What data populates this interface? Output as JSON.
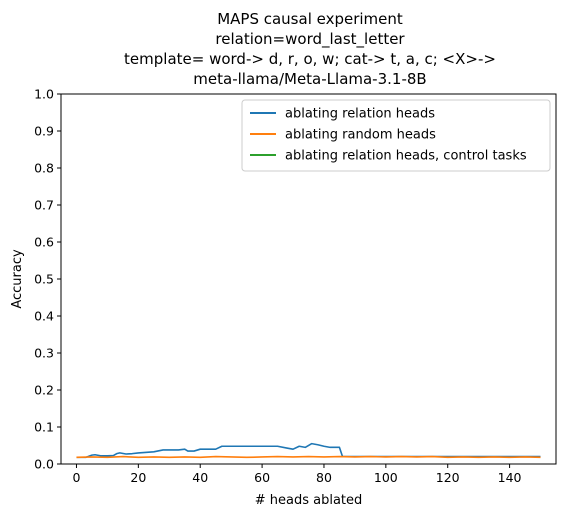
{
  "chart_data": {
    "type": "line",
    "title": [
      "MAPS causal experiment",
      "relation=word_last_letter",
      "template= word-> d, r, o, w; cat-> t, a, c; <X>->",
      "meta-llama/Meta-Llama-3.1-8B"
    ],
    "xlabel": "# heads ablated",
    "ylabel": "Accuracy",
    "xlim": [
      -5,
      155
    ],
    "ylim": [
      0,
      1
    ],
    "xticks": [
      0,
      20,
      40,
      60,
      80,
      100,
      120,
      140
    ],
    "yticks": [
      0.0,
      0.1,
      0.2,
      0.3,
      0.4,
      0.5,
      0.6,
      0.7,
      0.8,
      0.9,
      1.0
    ],
    "ytick_labels": [
      "0.0",
      "0.1",
      "0.2",
      "0.3",
      "0.4",
      "0.5",
      "0.6",
      "0.7",
      "0.8",
      "0.9",
      "1.0"
    ],
    "grid": false,
    "legend_position": "top-right",
    "series": [
      {
        "name": "ablating relation heads",
        "color": "#1f77b4",
        "x": [
          0,
          3,
          5,
          6,
          8,
          10,
          12,
          13,
          14,
          16,
          18,
          20,
          25,
          28,
          30,
          33,
          35,
          36,
          38,
          40,
          42,
          45,
          47,
          50,
          55,
          60,
          65,
          68,
          70,
          72,
          74,
          76,
          78,
          80,
          82,
          85,
          86,
          88,
          90,
          100,
          110,
          120,
          130,
          140,
          150
        ],
        "y": [
          0.018,
          0.018,
          0.024,
          0.025,
          0.022,
          0.022,
          0.023,
          0.028,
          0.03,
          0.027,
          0.028,
          0.03,
          0.033,
          0.038,
          0.038,
          0.038,
          0.04,
          0.035,
          0.035,
          0.04,
          0.04,
          0.04,
          0.048,
          0.048,
          0.048,
          0.048,
          0.048,
          0.043,
          0.04,
          0.048,
          0.045,
          0.055,
          0.052,
          0.048,
          0.045,
          0.045,
          0.02,
          0.02,
          0.02,
          0.02,
          0.02,
          0.02,
          0.02,
          0.02,
          0.02
        ]
      },
      {
        "name": "ablating random heads",
        "color": "#ff7f0e",
        "x": [
          0,
          5,
          10,
          15,
          20,
          25,
          30,
          35,
          40,
          45,
          50,
          55,
          60,
          65,
          70,
          75,
          80,
          85,
          90,
          95,
          100,
          105,
          110,
          115,
          120,
          125,
          130,
          135,
          140,
          145,
          150
        ],
        "y": [
          0.018,
          0.019,
          0.018,
          0.02,
          0.018,
          0.019,
          0.018,
          0.019,
          0.018,
          0.02,
          0.019,
          0.018,
          0.019,
          0.02,
          0.019,
          0.02,
          0.019,
          0.02,
          0.019,
          0.02,
          0.019,
          0.02,
          0.019,
          0.02,
          0.018,
          0.019,
          0.018,
          0.019,
          0.018,
          0.019,
          0.018
        ]
      },
      {
        "name": "ablating relation heads, control tasks",
        "color": "#2ca02c",
        "x": [],
        "y": []
      }
    ]
  }
}
